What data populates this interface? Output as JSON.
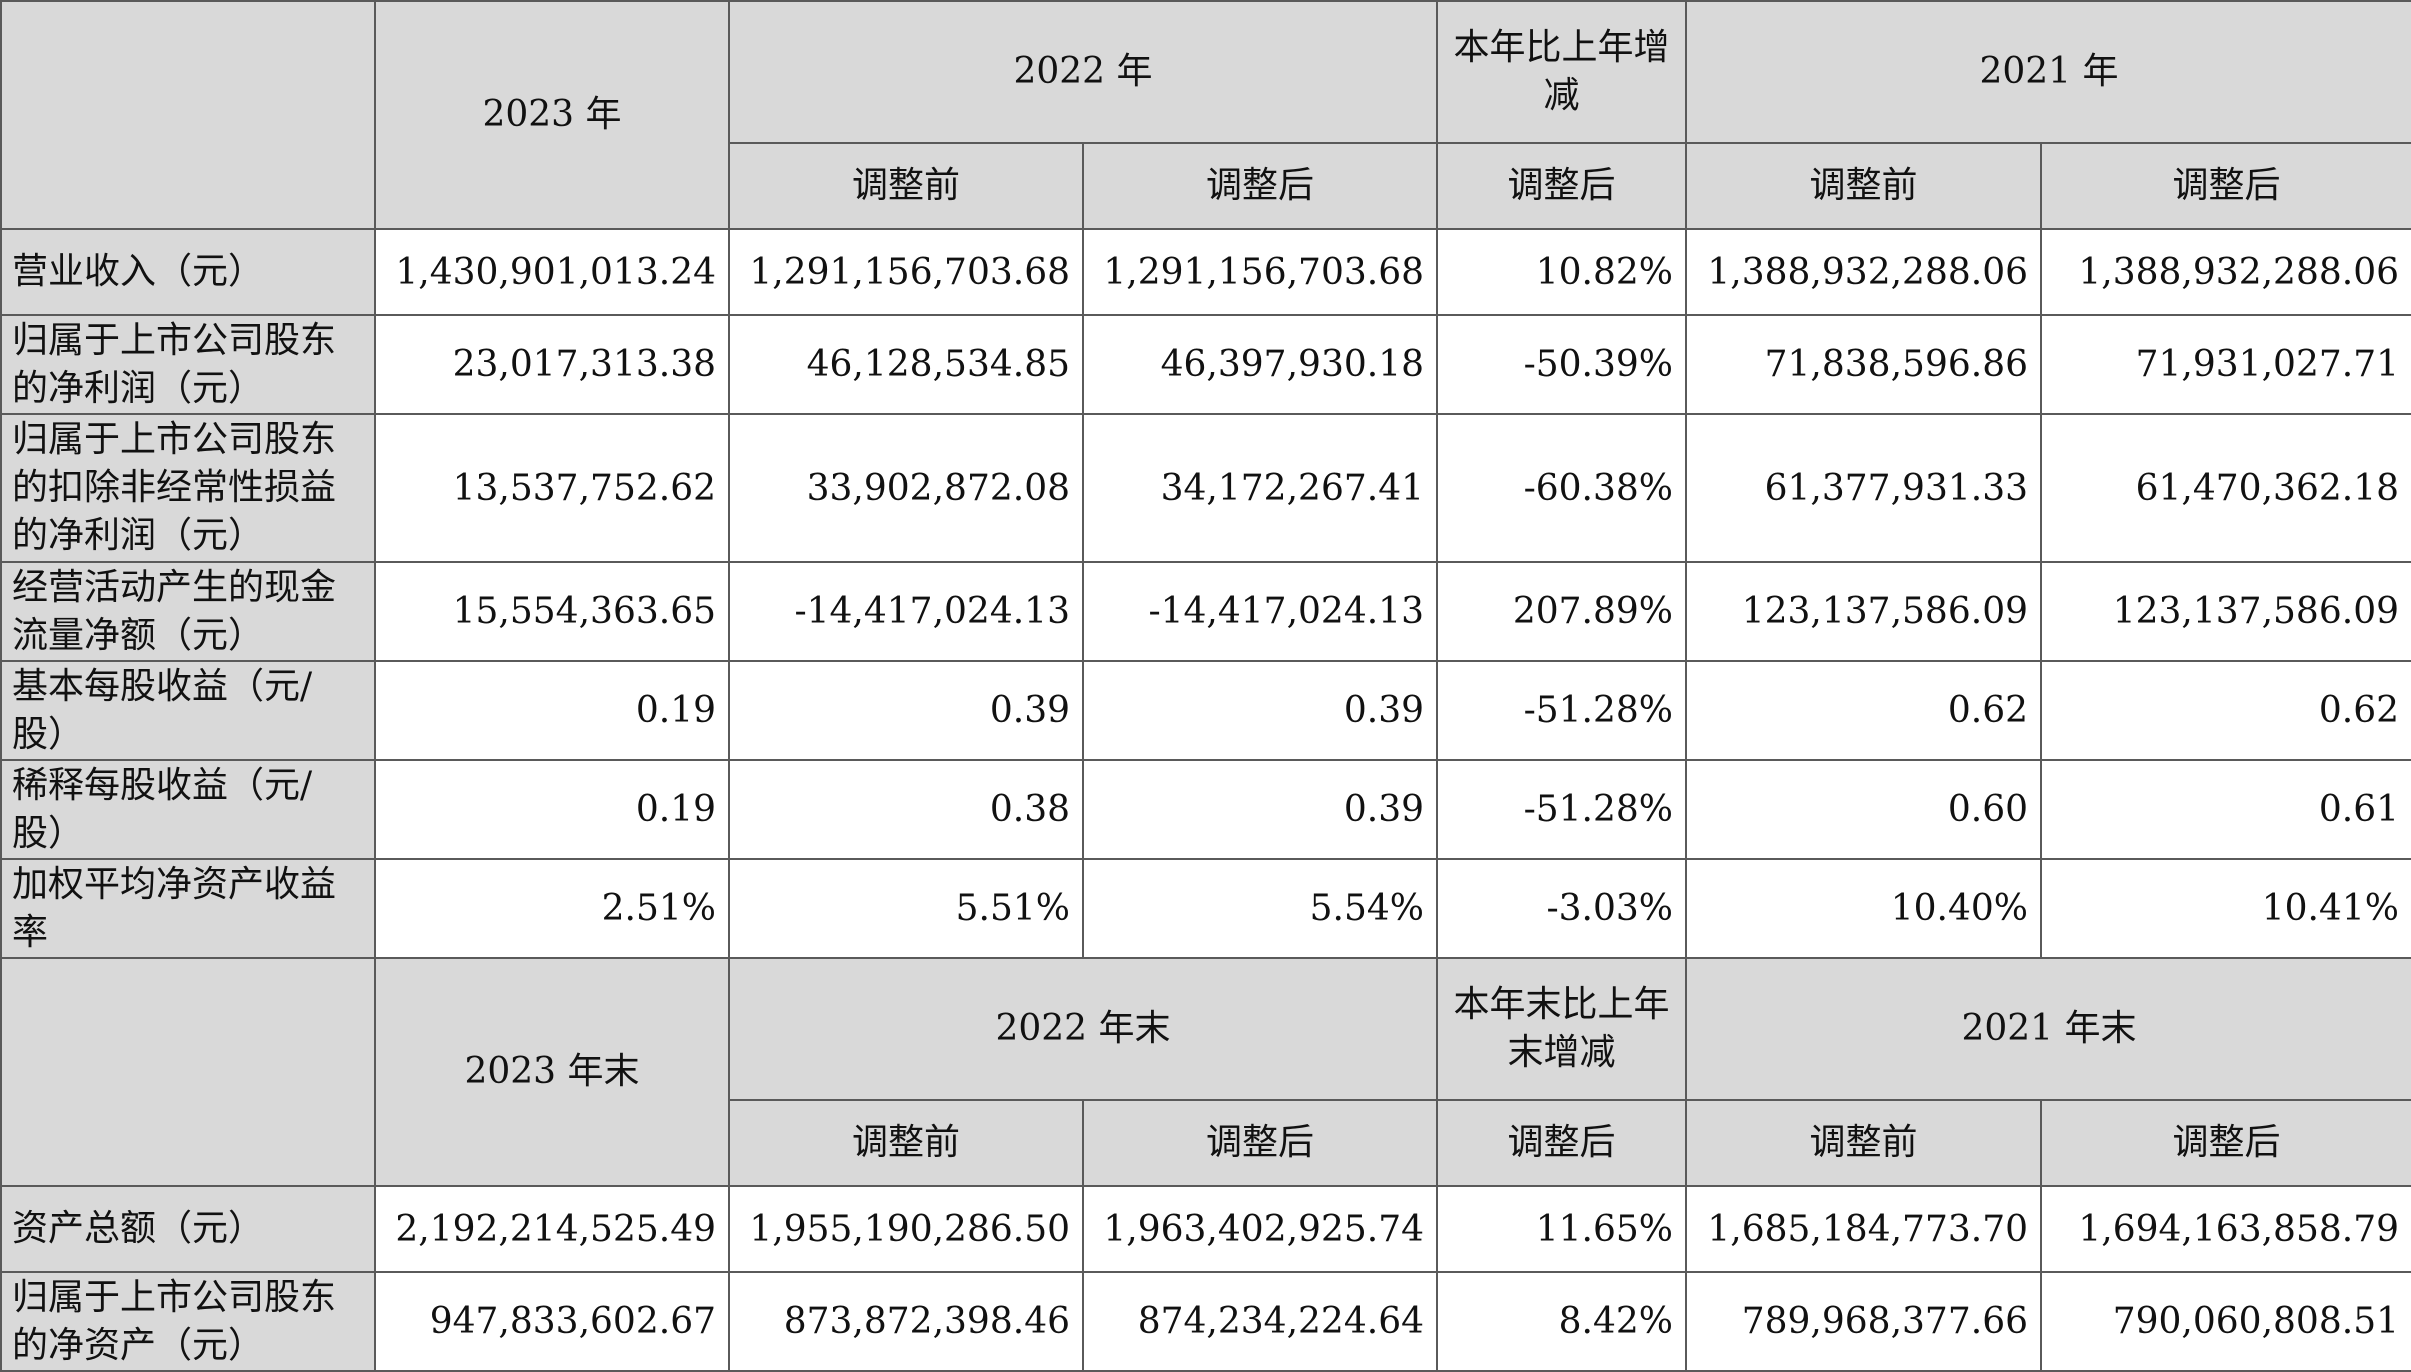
{
  "income": {
    "headers": {
      "year2023": "2023 年",
      "year2022": "2022 年",
      "change": "本年比上年增减",
      "year2021": "2021 年",
      "before": "调整前",
      "after": "调整后"
    },
    "rows": [
      {
        "label": "营业收入（元）",
        "v2023": "1,430,901,013.24",
        "v2022_before": "1,291,156,703.68",
        "v2022_after": "1,291,156,703.68",
        "change": "10.82%",
        "v2021_before": "1,388,932,288.06",
        "v2021_after": "1,388,932,288.06"
      },
      {
        "label": "归属于上市公司股东的净利润（元）",
        "v2023": "23,017,313.38",
        "v2022_before": "46,128,534.85",
        "v2022_after": "46,397,930.18",
        "change": "-50.39%",
        "v2021_before": "71,838,596.86",
        "v2021_after": "71,931,027.71"
      },
      {
        "label": "归属于上市公司股东的扣除非经常性损益的净利润（元）",
        "v2023": "13,537,752.62",
        "v2022_before": "33,902,872.08",
        "v2022_after": "34,172,267.41",
        "change": "-60.38%",
        "v2021_before": "61,377,931.33",
        "v2021_after": "61,470,362.18"
      },
      {
        "label": "经营活动产生的现金流量净额（元）",
        "v2023": "15,554,363.65",
        "v2022_before": "-14,417,024.13",
        "v2022_after": "-14,417,024.13",
        "change": "207.89%",
        "v2021_before": "123,137,586.09",
        "v2021_after": "123,137,586.09"
      },
      {
        "label": "基本每股收益（元/股）",
        "v2023": "0.19",
        "v2022_before": "0.39",
        "v2022_after": "0.39",
        "change": "-51.28%",
        "v2021_before": "0.62",
        "v2021_after": "0.62"
      },
      {
        "label": "稀释每股收益（元/股）",
        "v2023": "0.19",
        "v2022_before": "0.38",
        "v2022_after": "0.39",
        "change": "-51.28%",
        "v2021_before": "0.60",
        "v2021_after": "0.61"
      },
      {
        "label": "加权平均净资产收益率",
        "v2023": "2.51%",
        "v2022_before": "5.51%",
        "v2022_after": "5.54%",
        "change": "-3.03%",
        "v2021_before": "10.40%",
        "v2021_after": "10.41%"
      }
    ]
  },
  "balance": {
    "headers": {
      "year2023": "2023 年末",
      "year2022": "2022 年末",
      "change": "本年末比上年末增减",
      "year2021": "2021 年末",
      "before": "调整前",
      "after": "调整后"
    },
    "rows": [
      {
        "label": "资产总额（元）",
        "v2023": "2,192,214,525.49",
        "v2022_before": "1,955,190,286.50",
        "v2022_after": "1,963,402,925.74",
        "change": "11.65%",
        "v2021_before": "1,685,184,773.70",
        "v2021_after": "1,694,163,858.79"
      },
      {
        "label": "归属于上市公司股东的净资产（元）",
        "v2023": "947,833,602.67",
        "v2022_before": "873,872,398.46",
        "v2022_after": "874,234,224.64",
        "change": "8.42%",
        "v2021_before": "789,968,377.66",
        "v2021_after": "790,060,808.51"
      }
    ]
  }
}
